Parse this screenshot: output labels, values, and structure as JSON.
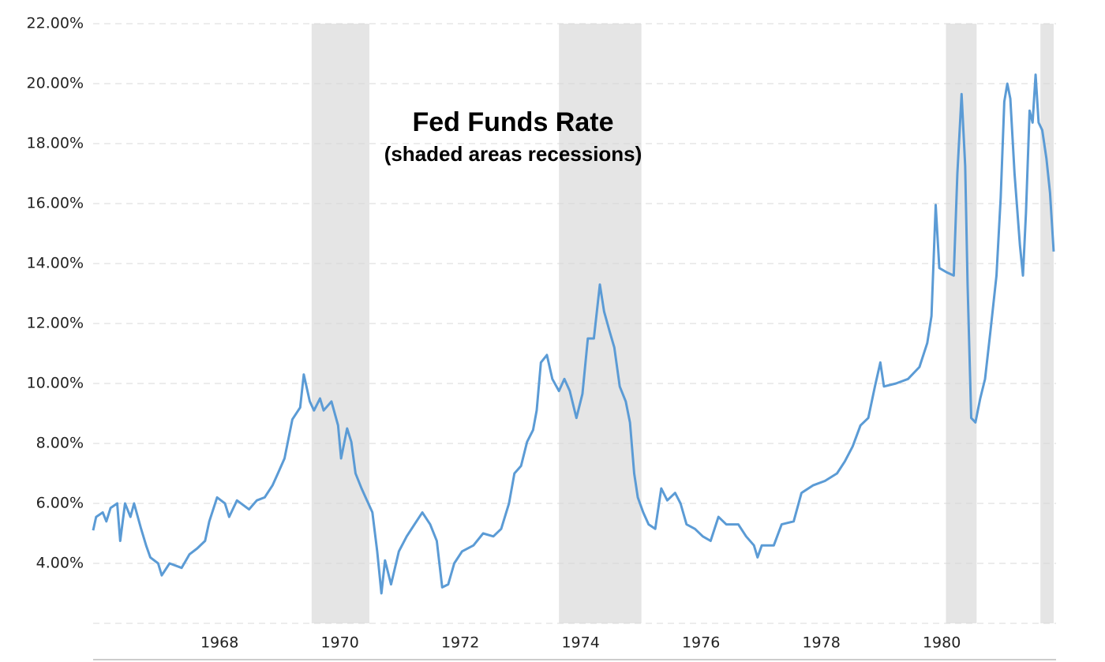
{
  "chart_data": {
    "type": "line",
    "title": "Fed Funds Rate",
    "subtitle": "(shaded areas recessions)",
    "xlim": [
      1965.9,
      1981.9
    ],
    "xticks": [
      1968,
      1970,
      1972,
      1974,
      1976,
      1978,
      1980
    ],
    "ylim": [
      2,
      22
    ],
    "yticks": [
      {
        "value": 4,
        "label": "4.00%"
      },
      {
        "value": 6,
        "label": "6.00%"
      },
      {
        "value": 8,
        "label": "8.00%"
      },
      {
        "value": 10,
        "label": "10.00%"
      },
      {
        "value": 12,
        "label": "12.00%"
      },
      {
        "value": 14,
        "label": "14.00%"
      },
      {
        "value": 16,
        "label": "16.00%"
      },
      {
        "value": 18,
        "label": "18.00%"
      },
      {
        "value": 20,
        "label": "20.00%"
      },
      {
        "value": 22,
        "label": "22.00%"
      }
    ],
    "grid": true,
    "recession_color": "#e5e5e5",
    "recessions": [
      [
        1969.53,
        1970.49
      ],
      [
        1973.64,
        1975.01
      ],
      [
        1980.07,
        1980.58
      ],
      [
        1981.64,
        1981.86
      ]
    ],
    "series": [
      {
        "color": "#5b9bd5",
        "x": [
          1965.9,
          1965.95,
          1966.06,
          1966.12,
          1966.19,
          1966.3,
          1966.35,
          1966.43,
          1966.52,
          1966.58,
          1966.69,
          1966.78,
          1966.85,
          1966.98,
          1967.04,
          1967.17,
          1967.37,
          1967.5,
          1967.63,
          1967.76,
          1967.83,
          1967.96,
          1968.09,
          1968.16,
          1968.29,
          1968.49,
          1968.62,
          1968.75,
          1968.88,
          1968.97,
          1969.08,
          1969.21,
          1969.34,
          1969.4,
          1969.5,
          1969.57,
          1969.67,
          1969.73,
          1969.86,
          1969.97,
          1970.02,
          1970.12,
          1970.19,
          1970.26,
          1970.36,
          1970.45,
          1970.54,
          1970.62,
          1970.69,
          1970.75,
          1970.85,
          1970.98,
          1971.11,
          1971.24,
          1971.37,
          1971.5,
          1971.61,
          1971.7,
          1971.8,
          1971.9,
          1972.03,
          1972.22,
          1972.38,
          1972.55,
          1972.68,
          1972.81,
          1972.9,
          1973.01,
          1973.11,
          1973.21,
          1973.27,
          1973.34,
          1973.44,
          1973.53,
          1973.64,
          1973.73,
          1973.82,
          1973.93,
          1974.03,
          1974.12,
          1974.22,
          1974.32,
          1974.39,
          1974.48,
          1974.56,
          1974.65,
          1974.75,
          1974.82,
          1974.89,
          1974.95,
          1975.04,
          1975.13,
          1975.24,
          1975.34,
          1975.44,
          1975.57,
          1975.66,
          1975.76,
          1975.9,
          1976.03,
          1976.16,
          1976.29,
          1976.42,
          1976.62,
          1976.75,
          1976.88,
          1976.94,
          1977.01,
          1977.21,
          1977.34,
          1977.54,
          1977.67,
          1977.86,
          1978.06,
          1978.26,
          1978.39,
          1978.52,
          1978.65,
          1978.78,
          1978.89,
          1978.98,
          1979.04,
          1979.24,
          1979.44,
          1979.63,
          1979.76,
          1979.83,
          1979.9,
          1979.96,
          1980.09,
          1980.2,
          1980.26,
          1980.33,
          1980.39,
          1980.43,
          1980.49,
          1980.56,
          1980.64,
          1980.72,
          1980.81,
          1980.91,
          1980.98,
          1981.04,
          1981.09,
          1981.14,
          1981.21,
          1981.3,
          1981.35,
          1981.4,
          1981.46,
          1981.51,
          1981.56,
          1981.61,
          1981.67,
          1981.74,
          1981.8,
          1981.86
        ],
        "values": [
          5.1,
          5.55,
          5.7,
          5.4,
          5.85,
          6.0,
          4.75,
          6.0,
          5.55,
          6.0,
          5.2,
          4.6,
          4.2,
          4.0,
          3.6,
          4.0,
          3.85,
          4.3,
          4.5,
          4.75,
          5.4,
          6.2,
          6.0,
          5.55,
          6.1,
          5.8,
          6.1,
          6.2,
          6.6,
          7.0,
          7.5,
          8.8,
          9.2,
          10.3,
          9.4,
          9.1,
          9.5,
          9.1,
          9.4,
          8.6,
          7.5,
          8.5,
          8.05,
          7.0,
          6.5,
          6.1,
          5.7,
          4.4,
          3.0,
          4.1,
          3.3,
          4.4,
          4.9,
          5.3,
          5.7,
          5.3,
          4.75,
          3.2,
          3.3,
          4.0,
          4.4,
          4.6,
          5.0,
          4.9,
          5.15,
          6.0,
          7.0,
          7.25,
          8.05,
          8.45,
          9.1,
          10.7,
          10.95,
          10.15,
          9.75,
          10.15,
          9.75,
          8.85,
          9.65,
          11.5,
          11.5,
          13.3,
          12.4,
          11.75,
          11.2,
          9.9,
          9.4,
          8.7,
          7.0,
          6.2,
          5.7,
          5.3,
          5.15,
          6.5,
          6.1,
          6.35,
          6.0,
          5.3,
          5.15,
          4.9,
          4.75,
          5.55,
          5.3,
          5.3,
          4.9,
          4.6,
          4.2,
          4.6,
          4.6,
          5.3,
          5.4,
          6.35,
          6.6,
          6.75,
          7.0,
          7.4,
          7.9,
          8.6,
          8.85,
          9.9,
          10.7,
          9.9,
          10.0,
          10.15,
          10.55,
          11.35,
          12.25,
          15.95,
          13.85,
          13.7,
          13.6,
          17.0,
          19.65,
          17.25,
          13.3,
          8.85,
          8.7,
          9.5,
          10.15,
          11.75,
          13.6,
          16.2,
          19.4,
          20.0,
          19.5,
          17.0,
          14.6,
          13.6,
          15.7,
          19.1,
          18.7,
          20.3,
          18.7,
          18.45,
          17.5,
          16.35,
          14.4
        ]
      }
    ]
  }
}
